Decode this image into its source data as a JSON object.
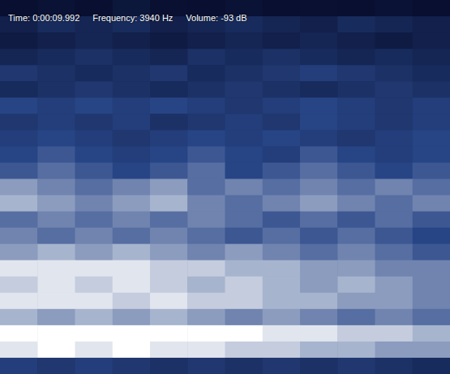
{
  "chart_data": {
    "type": "heatmap",
    "annotations": [
      "Time: 0:00:09.992",
      "Frequency: 3940 Hz",
      "Volume: -93 dB"
    ],
    "tick_labels": false,
    "cells": [
      [
        10,
        15,
        10,
        20,
        12,
        10,
        15,
        10,
        12,
        10,
        15,
        10
      ],
      [
        30,
        40,
        35,
        40,
        30,
        35,
        40,
        35,
        30,
        40,
        35,
        30
      ],
      [
        25,
        30,
        35,
        30,
        25,
        30,
        35,
        30,
        35,
        30,
        25,
        30
      ],
      [
        35,
        40,
        45,
        40,
        35,
        45,
        40,
        45,
        40,
        35,
        40,
        35
      ],
      [
        50,
        45,
        40,
        45,
        50,
        40,
        45,
        50,
        55,
        50,
        45,
        40
      ],
      [
        40,
        45,
        50,
        45,
        40,
        45,
        50,
        45,
        40,
        45,
        50,
        45
      ],
      [
        60,
        55,
        60,
        55,
        60,
        55,
        50,
        55,
        60,
        55,
        50,
        55
      ],
      [
        50,
        55,
        50,
        55,
        45,
        50,
        55,
        50,
        60,
        55,
        50,
        55
      ],
      [
        55,
        60,
        55,
        50,
        55,
        60,
        55,
        60,
        55,
        50,
        55,
        60
      ],
      [
        60,
        65,
        60,
        55,
        60,
        65,
        60,
        55,
        65,
        60,
        55,
        60
      ],
      [
        65,
        70,
        65,
        60,
        65,
        70,
        60,
        65,
        70,
        65,
        60,
        65
      ],
      [
        80,
        75,
        70,
        75,
        80,
        70,
        75,
        70,
        75,
        70,
        75,
        70
      ],
      [
        85,
        80,
        75,
        80,
        85,
        75,
        70,
        75,
        80,
        75,
        70,
        75
      ],
      [
        70,
        75,
        70,
        75,
        70,
        75,
        70,
        65,
        70,
        65,
        70,
        65
      ],
      [
        75,
        70,
        75,
        70,
        75,
        70,
        65,
        70,
        65,
        70,
        65,
        60
      ],
      [
        80,
        85,
        80,
        85,
        80,
        75,
        80,
        75,
        70,
        75,
        70,
        65
      ],
      [
        95,
        95,
        95,
        95,
        90,
        90,
        85,
        85,
        80,
        80,
        75,
        75
      ],
      [
        90,
        95,
        90,
        95,
        90,
        85,
        90,
        85,
        80,
        85,
        80,
        75
      ],
      [
        95,
        95,
        95,
        90,
        95,
        90,
        90,
        85,
        85,
        80,
        80,
        75
      ],
      [
        85,
        80,
        85,
        80,
        85,
        80,
        75,
        80,
        75,
        70,
        75,
        70
      ],
      [
        100,
        100,
        100,
        100,
        100,
        100,
        100,
        95,
        95,
        90,
        90,
        85
      ],
      [
        95,
        100,
        95,
        100,
        95,
        95,
        90,
        90,
        85,
        85,
        80,
        80
      ],
      [
        55,
        50,
        55,
        50,
        45,
        50,
        45,
        50,
        45,
        50,
        45,
        40
      ]
    ]
  }
}
